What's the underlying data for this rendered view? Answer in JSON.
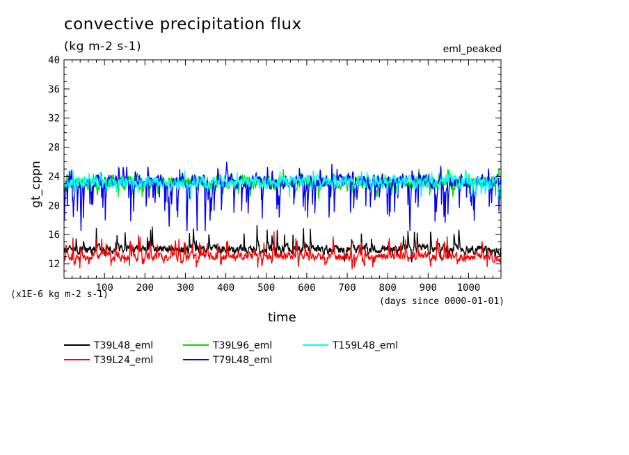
{
  "chart_data": {
    "type": "line",
    "title": "convective precipitation flux",
    "subtitle": "(kg m-2 s-1)",
    "run_label": "eml_peaked",
    "ylabel": "gt_cppn",
    "xlabel": "time",
    "y_scale_note": "(x1E-6 kg m-2 s-1)",
    "x_units_note": "(days since 0000-01-01)",
    "xlim": [
      0,
      1080
    ],
    "ylim": [
      10,
      40
    ],
    "x_ticks": [
      100,
      200,
      300,
      400,
      500,
      600,
      700,
      800,
      900,
      1000
    ],
    "y_ticks": [
      12,
      16,
      20,
      24,
      28,
      32,
      36,
      40
    ],
    "legend_position": "bottom",
    "series": [
      {
        "name": "T39L48_eml",
        "color": "#000000",
        "mean": 14.0,
        "spread": 0.6,
        "spike": 2.8,
        "spike_rate": 0.05,
        "dip": 1.5,
        "dip_rate": 0.02,
        "min": 11.5,
        "max": 17.5
      },
      {
        "name": "T39L24_eml",
        "color": "#ff0000",
        "mean": 13.0,
        "spread": 0.6,
        "spike": 2.5,
        "spike_rate": 0.05,
        "dip": 1.4,
        "dip_rate": 0.03,
        "min": 11.2,
        "max": 16.5
      },
      {
        "name": "T39L96_eml",
        "color": "#00dd00",
        "mean": 23.2,
        "spread": 0.9,
        "spike": 1.6,
        "spike_rate": 0.02,
        "dip": 2.0,
        "dip_rate": 0.03,
        "min": 20.5,
        "max": 25.0
      },
      {
        "name": "T79L48_eml",
        "color": "#0000ff",
        "mean": 23.3,
        "spread": 0.9,
        "spike": 2.3,
        "spike_rate": 0.05,
        "dip": 5.5,
        "dip_rate": 0.09,
        "min": 16.5,
        "max": 26.0
      },
      {
        "name": "T159L48_eml",
        "color": "#00ffff",
        "mean": 23.2,
        "spread": 0.8,
        "spike": 1.5,
        "spike_rate": 0.03,
        "dip": 2.2,
        "dip_rate": 0.03,
        "min": 20.0,
        "max": 25.0
      }
    ]
  }
}
